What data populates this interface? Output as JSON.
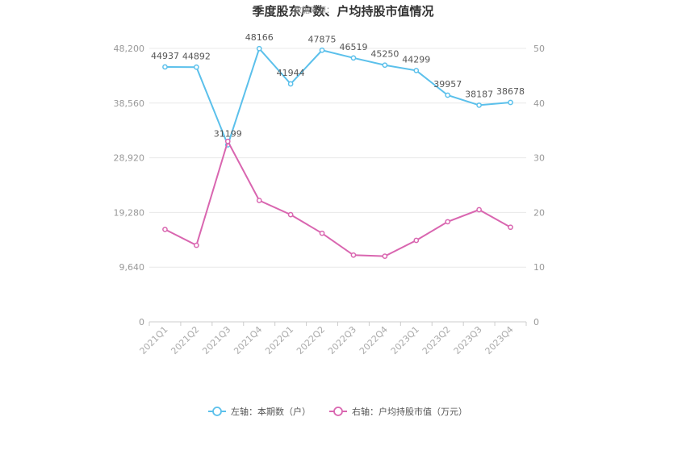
{
  "chart_data": {
    "type": "line",
    "title": "季度股东户数、户均持股市值情况",
    "watermark": "数据来源：",
    "categories": [
      "2021Q1",
      "2021Q2",
      "2021Q3",
      "2021Q4",
      "2022Q1",
      "2022Q2",
      "2022Q3",
      "2022Q4",
      "2023Q1",
      "2023Q2",
      "2023Q3",
      "2023Q4"
    ],
    "y_left": {
      "ticks": [
        "0",
        "9,640",
        "19,280",
        "28,920",
        "38,560",
        "48,200"
      ],
      "range": [
        0,
        48200
      ]
    },
    "y_right": {
      "ticks": [
        "0",
        "10",
        "20",
        "30",
        "40",
        "50"
      ],
      "range": [
        0,
        50
      ]
    },
    "series": [
      {
        "name": "左轴：本期数（户）",
        "axis": "left",
        "color": "#5bc0eb",
        "values": [
          44937,
          44892,
          31199,
          48166,
          41944,
          47875,
          46519,
          45250,
          44299,
          39957,
          38187,
          38678
        ],
        "labels": [
          "44937",
          "44892",
          "31199",
          "48166",
          "41944",
          "47875",
          "46519",
          "45250",
          "44299",
          "39957",
          "38187",
          "38678"
        ]
      },
      {
        "name": "右轴：户均持股市值（万元）",
        "axis": "right",
        "color": "#d966b0",
        "values": [
          16.9,
          14.0,
          33.0,
          22.2,
          19.6,
          16.2,
          12.2,
          12.0,
          14.9,
          18.3,
          20.5,
          17.3
        ]
      }
    ],
    "grid": true,
    "legend_position": "bottom"
  }
}
